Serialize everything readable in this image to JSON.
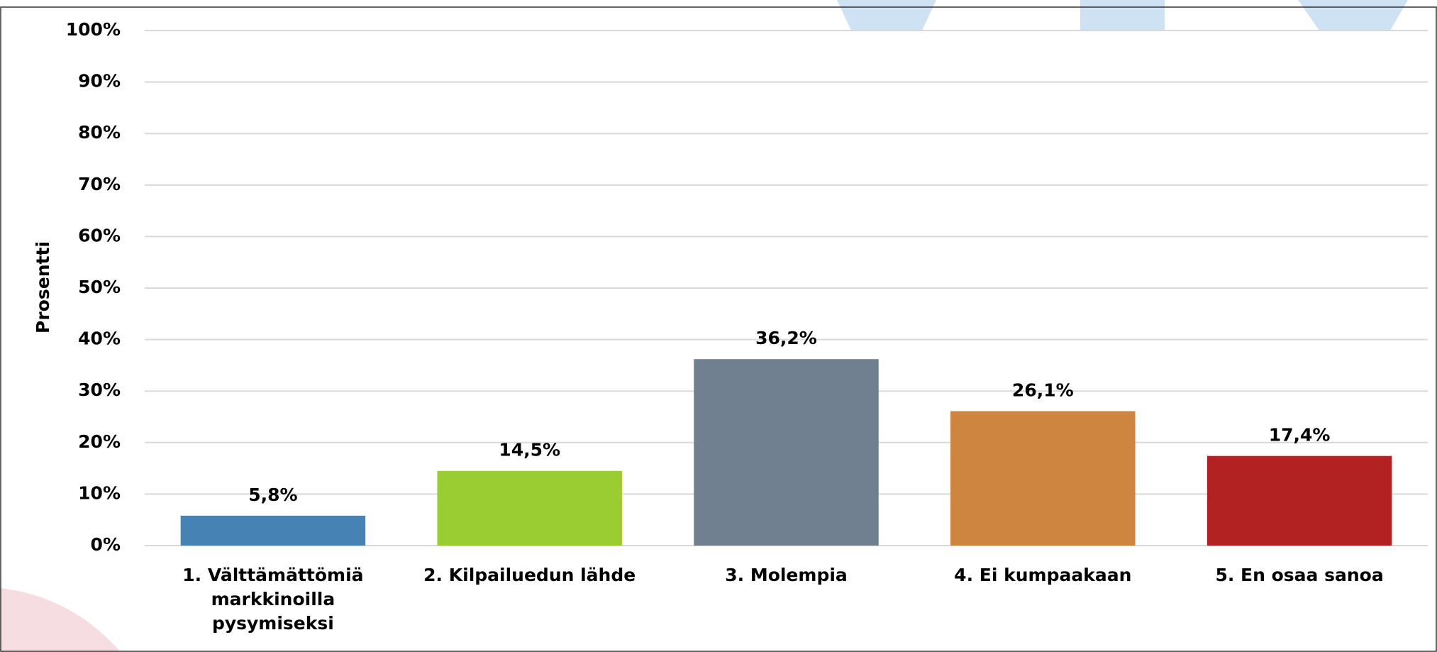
{
  "chart_data": {
    "type": "bar",
    "y_label": "Prosentti",
    "categories": [
      "1. Välttämättömiä markkinoilla pysymiseksi",
      "2. Kilpailuedun lähde",
      "3. Molempia",
      "4. Ei kumpaakaan",
      "5. En osaa sanoa"
    ],
    "values": [
      5.8,
      14.5,
      36.2,
      26.1,
      17.4
    ],
    "value_labels": [
      "5,8%",
      "14,5%",
      "36,2%",
      "26,1%",
      "17,4%"
    ],
    "colors": [
      "#4682b4",
      "#9acd32",
      "#708090",
      "#cd853f",
      "#b22222"
    ],
    "ylim": [
      0,
      100
    ],
    "yticks": [
      {
        "value": 0,
        "label": "0%"
      },
      {
        "value": 10,
        "label": "10%"
      },
      {
        "value": 20,
        "label": "20%"
      },
      {
        "value": 30,
        "label": "30%"
      },
      {
        "value": 40,
        "label": "40%"
      },
      {
        "value": 50,
        "label": "50%"
      },
      {
        "value": 60,
        "label": "60%"
      },
      {
        "value": 70,
        "label": "70%"
      },
      {
        "value": 80,
        "label": "80%"
      },
      {
        "value": 90,
        "label": "90%"
      },
      {
        "value": 100,
        "label": "100%"
      }
    ],
    "grid": true
  }
}
